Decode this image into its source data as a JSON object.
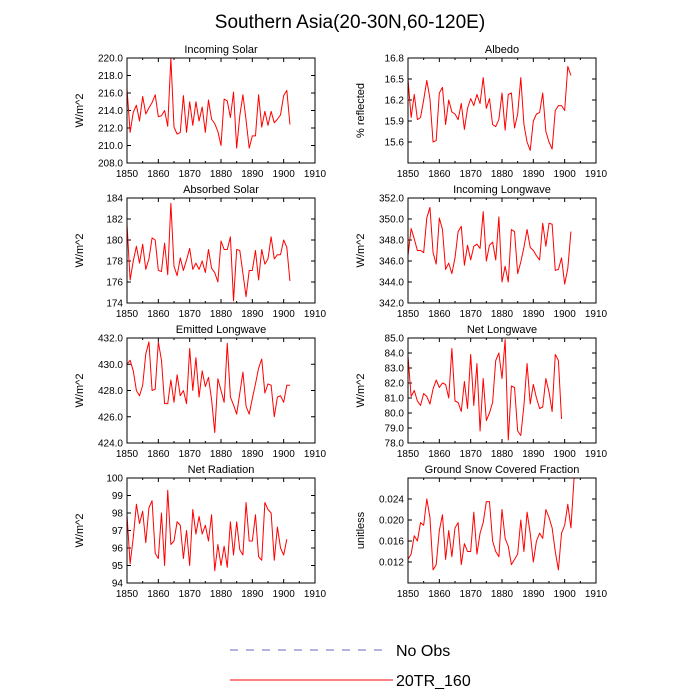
{
  "figure": {
    "title": "Southern Asia(20-30N,60-120E)",
    "legend": [
      {
        "label": "No Obs",
        "color": "#6464c8",
        "dash": "dashed"
      },
      {
        "label": "20TR_160",
        "color": "#ff0000",
        "dash": "solid"
      }
    ]
  },
  "chart_data": [
    {
      "type": "line",
      "title": "Incoming Solar",
      "ylabel": "W/m^2",
      "xlabel": "",
      "xlim": [
        1850,
        1910
      ],
      "ylim": [
        208,
        220
      ],
      "xticks": [
        1850,
        1860,
        1870,
        1880,
        1890,
        1900,
        1910
      ],
      "yticks": [
        "208.0",
        "210.0",
        "212.0",
        "214.0",
        "216.0",
        "218.0",
        "220.0"
      ],
      "series": [
        {
          "name": "20TR_160",
          "color": "#ff0000",
          "x_start": 1850,
          "values": [
            216.5,
            211.5,
            213.8,
            214.6,
            212.8,
            215.6,
            213.6,
            214.3,
            214.9,
            215.8,
            213.3,
            213.4,
            214.0,
            212.2,
            220.0,
            212.1,
            211.3,
            211.5,
            215.7,
            211.5,
            215.0,
            212.3,
            215.0,
            212.8,
            214.4,
            211.5,
            215.2,
            213.0,
            212.5,
            211.6,
            210.0,
            215.3,
            215.1,
            213.2,
            216.1,
            209.7,
            213.4,
            215.8,
            212.9,
            209.7,
            211.1,
            211.1,
            215.8,
            212.1,
            213.9,
            212.3,
            213.9,
            212.6,
            213.0,
            213.5,
            215.7,
            216.3,
            212.4
          ]
        }
      ]
    },
    {
      "type": "line",
      "title": "Albedo",
      "ylabel": "% reflected",
      "xlabel": "",
      "xlim": [
        1850,
        1910
      ],
      "ylim": [
        15.3,
        16.8
      ],
      "xticks": [
        1850,
        1860,
        1870,
        1880,
        1890,
        1900,
        1910
      ],
      "yticks": [
        "15.6",
        "15.9",
        "16.2",
        "16.5",
        "16.8"
      ],
      "series": [
        {
          "name": "20TR_160",
          "color": "#ff0000",
          "x_start": 1850,
          "values": [
            16.5,
            15.95,
            16.28,
            15.92,
            15.95,
            16.2,
            16.48,
            16.22,
            15.6,
            15.62,
            16.3,
            16.38,
            15.85,
            16.2,
            16.03,
            16.0,
            15.92,
            16.15,
            15.78,
            16.08,
            16.22,
            16.12,
            16.28,
            16.15,
            16.52,
            16.08,
            16.22,
            15.85,
            15.82,
            15.92,
            16.3,
            15.77,
            16.28,
            16.3,
            15.8,
            16.0,
            16.52,
            15.85,
            15.6,
            15.48,
            15.9,
            16.0,
            16.02,
            16.3,
            15.75,
            15.6,
            15.5,
            16.05,
            16.12,
            16.12,
            16.05,
            16.68,
            16.55
          ]
        }
      ]
    },
    {
      "type": "line",
      "title": "Absorbed Solar",
      "ylabel": "W/m^2",
      "xlabel": "",
      "xlim": [
        1850,
        1910
      ],
      "ylim": [
        174,
        184
      ],
      "xticks": [
        1850,
        1860,
        1870,
        1880,
        1890,
        1900,
        1910
      ],
      "yticks": [
        "174",
        "176",
        "178",
        "180",
        "182",
        "184"
      ],
      "series": [
        {
          "name": "20TR_160",
          "color": "#ff0000",
          "x_start": 1850,
          "values": [
            181.5,
            176.2,
            178.0,
            179.4,
            177.8,
            179.6,
            177.2,
            178.2,
            180.2,
            180.0,
            177.1,
            177.0,
            179.7,
            176.7,
            183.5,
            177.5,
            176.6,
            178.3,
            177.1,
            178.1,
            179.2,
            177.2,
            177.8,
            177.2,
            178.0,
            176.9,
            179.1,
            177.3,
            176.9,
            176.0,
            179.9,
            179.1,
            179.1,
            180.3,
            174.2,
            179.1,
            179.0,
            176.8,
            174.6,
            177.1,
            177.1,
            179.0,
            176.2,
            179.1,
            177.7,
            178.2,
            180.3,
            178.2,
            178.6,
            178.6,
            180.0,
            179.3,
            176.1
          ]
        }
      ]
    },
    {
      "type": "line",
      "title": "Incoming Longwave",
      "ylabel": "W/m^2",
      "xlabel": "",
      "xlim": [
        1850,
        1910
      ],
      "ylim": [
        342,
        352
      ],
      "xticks": [
        1850,
        1860,
        1870,
        1880,
        1890,
        1900,
        1910
      ],
      "yticks": [
        "342.0",
        "344.0",
        "346.0",
        "348.0",
        "350.0",
        "352.0"
      ],
      "series": [
        {
          "name": "20TR_160",
          "color": "#ff0000",
          "x_start": 1850,
          "values": [
            346.5,
            349.1,
            348.1,
            347.0,
            347.0,
            346.8,
            350.1,
            351.1,
            346.8,
            345.7,
            350.1,
            349.0,
            345.2,
            345.8,
            344.8,
            346.3,
            348.8,
            349.3,
            345.6,
            347.5,
            346.1,
            347.4,
            347.6,
            347.2,
            350.7,
            346.0,
            347.5,
            347.8,
            346.1,
            350.2,
            344.0,
            345.5,
            344.0,
            349.0,
            348.8,
            344.8,
            345.9,
            347.3,
            349.0,
            347.3,
            347.0,
            346.5,
            346.1,
            349.6,
            347.4,
            349.6,
            349.5,
            345.1,
            345.2,
            346.3,
            343.8,
            345.3,
            348.8
          ]
        }
      ]
    },
    {
      "type": "line",
      "title": "Emitted Longwave",
      "ylabel": "W/m^2",
      "xlabel": "",
      "xlim": [
        1850,
        1910
      ],
      "ylim": [
        424,
        432
      ],
      "xticks": [
        1850,
        1860,
        1870,
        1880,
        1890,
        1900,
        1910
      ],
      "yticks": [
        "424.0",
        "426.0",
        "428.0",
        "430.0",
        "432.0"
      ],
      "series": [
        {
          "name": "20TR_160",
          "color": "#ff0000",
          "x_start": 1850,
          "values": [
            430.0,
            430.3,
            429.5,
            428.0,
            427.6,
            428.4,
            430.8,
            431.7,
            428.0,
            428.1,
            431.7,
            430.3,
            427.0,
            427.0,
            428.8,
            427.1,
            429.2,
            427.6,
            428.0,
            427.0,
            431.2,
            428.0,
            430.5,
            427.5,
            429.5,
            428.3,
            429.0,
            427.3,
            424.8,
            428.9,
            428.0,
            427.1,
            431.6,
            427.5,
            426.9,
            426.2,
            427.8,
            429.4,
            426.8,
            426.2,
            427.4,
            428.5,
            429.7,
            430.4,
            427.8,
            428.5,
            428.4,
            426.0,
            427.5,
            427.6,
            427.1,
            428.4,
            428.4
          ]
        }
      ]
    },
    {
      "type": "line",
      "title": "Net Longwave",
      "ylabel": "W/m^2",
      "xlabel": "",
      "xlim": [
        1850,
        1910
      ],
      "ylim": [
        78,
        85
      ],
      "xticks": [
        1850,
        1860,
        1870,
        1880,
        1890,
        1900,
        1910
      ],
      "yticks": [
        "78.0",
        "79.0",
        "80.0",
        "81.0",
        "82.0",
        "83.0",
        "84.0",
        "85.0"
      ],
      "series": [
        {
          "name": "20TR_160",
          "color": "#ff0000",
          "x_start": 1850,
          "values": [
            83.8,
            81.1,
            81.5,
            80.8,
            80.5,
            81.3,
            81.1,
            80.6,
            81.6,
            82.2,
            81.7,
            82.0,
            81.9,
            81.0,
            84.3,
            80.8,
            80.7,
            80.1,
            82.1,
            80.3,
            83.9,
            80.5,
            83.3,
            78.8,
            82.3,
            79.5,
            80.0,
            80.7,
            83.5,
            84.0,
            82.3,
            84.9,
            78.2,
            81.8,
            81.7,
            78.8,
            78.5,
            80.5,
            83.3,
            80.6,
            81.9,
            81.0,
            80.3,
            80.4,
            82.3,
            81.4,
            80.1,
            83.9,
            83.5,
            79.6
          ]
        }
      ]
    },
    {
      "type": "line",
      "title": "Net Radiation",
      "ylabel": "W/m^2",
      "xlabel": "",
      "xlim": [
        1850,
        1910
      ],
      "ylim": [
        94,
        100
      ],
      "xticks": [
        1850,
        1860,
        1870,
        1880,
        1890,
        1900,
        1910
      ],
      "yticks": [
        "94",
        "95",
        "96",
        "97",
        "98",
        "99",
        "100"
      ],
      "series": [
        {
          "name": "20TR_160",
          "color": "#ff0000",
          "x_start": 1850,
          "values": [
            97.9,
            95.1,
            96.6,
            98.5,
            97.4,
            98.1,
            96.3,
            98.3,
            98.7,
            95.7,
            95.4,
            98.0,
            95.0,
            99.3,
            96.2,
            96.4,
            97.5,
            97.3,
            95.4,
            97.0,
            95.0,
            98.2,
            96.8,
            97.8,
            96.8,
            97.3,
            96.4,
            97.9,
            94.7,
            96.2,
            95.0,
            96.1,
            94.9,
            97.5,
            95.6,
            97.5,
            95.9,
            95.6,
            98.6,
            96.4,
            96.4,
            97.9,
            95.5,
            95.3,
            98.6,
            98.2,
            98.0,
            95.3,
            97.2,
            96.0,
            95.6,
            96.5
          ]
        }
      ]
    },
    {
      "type": "line",
      "title": "Ground Snow Covered Fraction",
      "ylabel": "unitless",
      "xlabel": "",
      "xlim": [
        1850,
        1910
      ],
      "ylim": [
        0.008,
        0.028
      ],
      "xticks": [
        1850,
        1860,
        1870,
        1880,
        1890,
        1900,
        1910
      ],
      "yticks": [
        "0.012",
        "0.016",
        "0.020",
        "0.024"
      ],
      "series": [
        {
          "name": "20TR_160",
          "color": "#ff0000",
          "x_start": 1850,
          "values": [
            0.0125,
            0.0135,
            0.017,
            0.016,
            0.0195,
            0.019,
            0.024,
            0.0205,
            0.0105,
            0.0115,
            0.018,
            0.021,
            0.0125,
            0.018,
            0.013,
            0.0185,
            0.0195,
            0.0115,
            0.0155,
            0.014,
            0.014,
            0.0215,
            0.0135,
            0.0175,
            0.0195,
            0.0235,
            0.0235,
            0.016,
            0.014,
            0.013,
            0.022,
            0.0165,
            0.015,
            0.0115,
            0.0125,
            0.0135,
            0.02,
            0.014,
            0.0215,
            0.0175,
            0.012,
            0.016,
            0.0175,
            0.0165,
            0.022,
            0.0205,
            0.0185,
            0.014,
            0.0105,
            0.0175,
            0.019,
            0.023,
            0.0185,
            0.028
          ]
        }
      ]
    }
  ]
}
